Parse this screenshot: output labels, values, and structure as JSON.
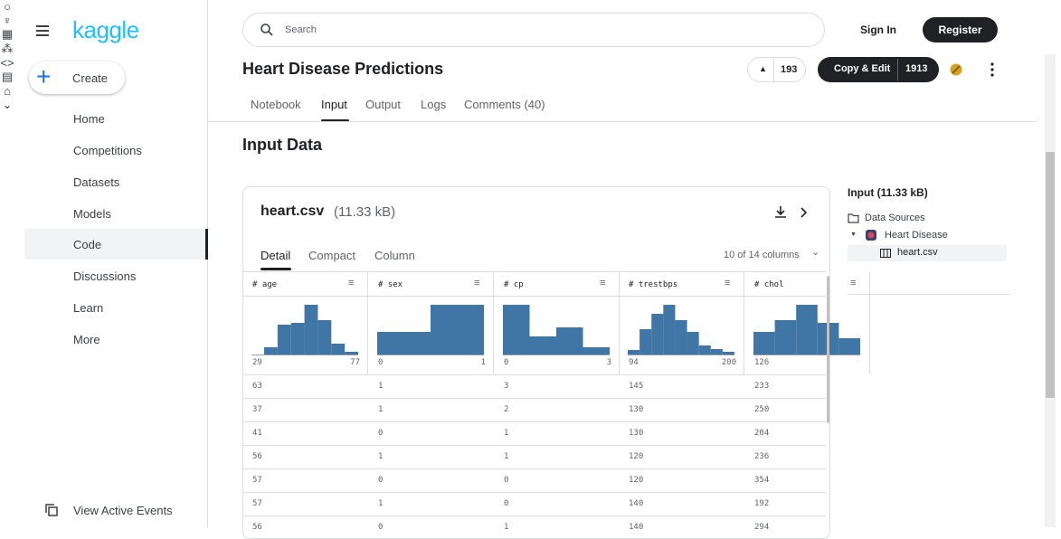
{
  "sidebar": {
    "logo": "kaggle",
    "create": "Create",
    "nav": [
      "Home",
      "Competitions",
      "Datasets",
      "Models",
      "Code",
      "Discussions",
      "Learn",
      "More"
    ],
    "footer": "View Active Events"
  },
  "topbar": {
    "search_placeholder": "Search",
    "sign_in": "Sign In",
    "register": "Register"
  },
  "notebook": {
    "title": "Heart Disease Predictions",
    "votes": 193,
    "copy_edit": "Copy & Edit",
    "copy_count": 1913,
    "tabs": [
      "Notebook",
      "Input",
      "Output",
      "Logs",
      "Comments (40)"
    ]
  },
  "input_data": {
    "heading": "Input Data",
    "file": {
      "name": "heart.csv",
      "size": "(11.33 kB)",
      "view_tabs": [
        "Detail",
        "Compact",
        "Column"
      ],
      "columns_shown": "10 of 14 columns",
      "columns": [
        {
          "name": "# age",
          "histogram": [
            8,
            33,
            35,
            55,
            38,
            12,
            3
          ],
          "min": 29,
          "max": 77
        },
        {
          "name": "# sex",
          "histogram": [
            25,
            55
          ],
          "min": 0,
          "max": 1
        },
        {
          "name": "# cp",
          "histogram": [
            55,
            20,
            30,
            8
          ],
          "min": 0,
          "max": 3
        },
        {
          "name": "# trestbps",
          "histogram": [
            5,
            28,
            45,
            55,
            38,
            25,
            10,
            6,
            3
          ],
          "min": 94,
          "max": 200
        },
        {
          "name": "# chol",
          "histogram": [
            25,
            38,
            55,
            35,
            18
          ],
          "min": 126
        }
      ],
      "rows": [
        [
          63,
          1,
          3,
          145,
          233
        ],
        [
          37,
          1,
          2,
          130,
          250
        ],
        [
          41,
          0,
          1,
          130,
          204
        ],
        [
          56,
          1,
          1,
          120,
          236
        ],
        [
          57,
          0,
          0,
          120,
          354
        ],
        [
          57,
          1,
          0,
          140,
          192
        ],
        [
          56,
          0,
          1,
          140,
          294
        ]
      ]
    }
  },
  "right_panel": {
    "title": "Input (11.33 kB)",
    "data_sources": "Data Sources",
    "dataset": "Heart Disease",
    "file": "heart.csv"
  }
}
